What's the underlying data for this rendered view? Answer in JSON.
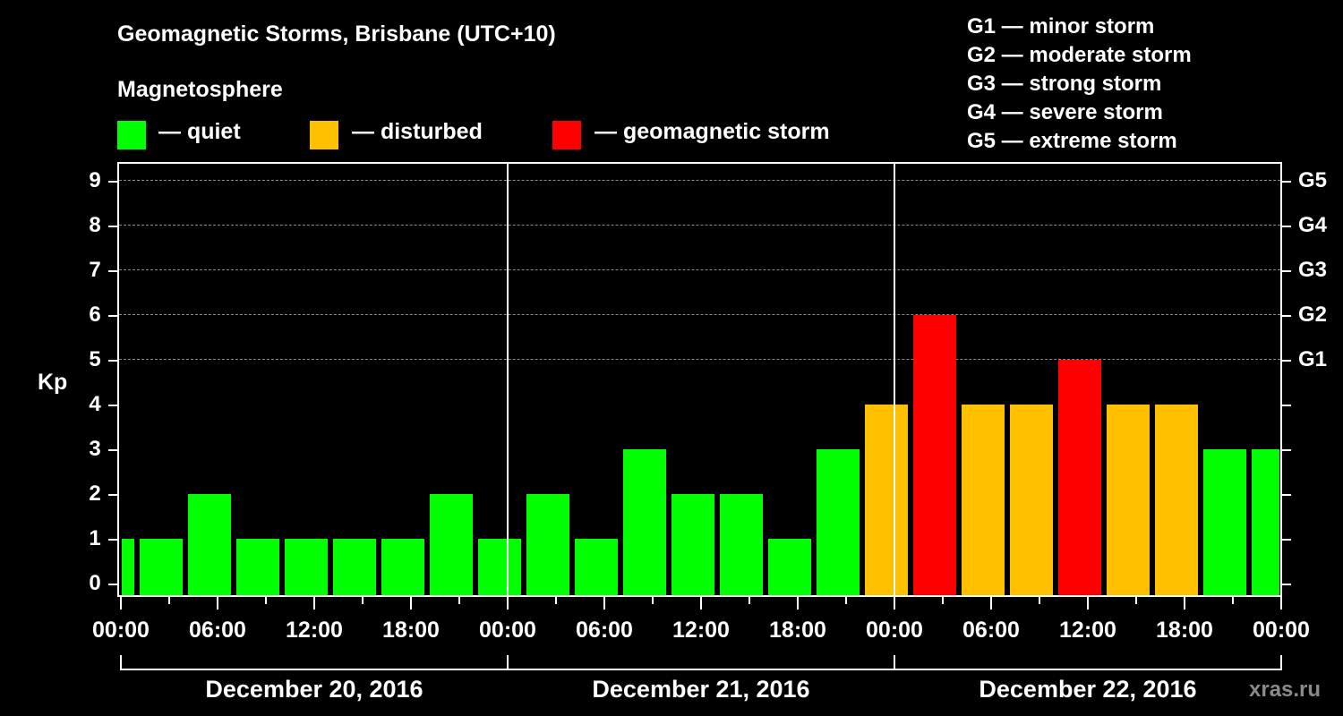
{
  "title": "Geomagnetic Storms, Brisbane (UTC+10)",
  "subtitle": "Magnetosphere",
  "legend": [
    {
      "label": "— quiet",
      "color": "#00ff00"
    },
    {
      "label": "— disturbed",
      "color": "#ffc000"
    },
    {
      "label": "— geomagnetic storm",
      "color": "#ff0000"
    }
  ],
  "g_scale": [
    {
      "label": "G1 — minor storm"
    },
    {
      "label": "G2 — moderate storm"
    },
    {
      "label": "G3 — strong storm"
    },
    {
      "label": "G4 — severe storm"
    },
    {
      "label": "G5 — extreme storm"
    }
  ],
  "axes": {
    "ylabel": "Kp",
    "yticks": [
      "0",
      "1",
      "2",
      "3",
      "4",
      "5",
      "6",
      "7",
      "8",
      "9"
    ],
    "right_ticks": [
      "G1",
      "G2",
      "G3",
      "G4",
      "G5"
    ],
    "xticks": [
      "00:00",
      "06:00",
      "12:00",
      "18:00",
      "00:00",
      "06:00",
      "12:00",
      "18:00",
      "00:00",
      "06:00",
      "12:00",
      "18:00",
      "00:00"
    ],
    "dates": [
      "December 20, 2016",
      "December 21, 2016",
      "December 22, 2016"
    ]
  },
  "credit": "xras.ru",
  "chart_data": {
    "type": "bar",
    "title": "Geomagnetic Storms, Brisbane (UTC+10)",
    "xlabel": "",
    "ylabel": "Kp",
    "ylim": [
      0,
      9
    ],
    "grid": "horizontal dashed at Kp 5-9",
    "interval_hours": 3,
    "categories": [
      "Dec 20 ~00:00 (partial)",
      "Dec 20 01:00",
      "Dec 20 04:00",
      "Dec 20 07:00",
      "Dec 20 10:00",
      "Dec 20 13:00",
      "Dec 20 16:00",
      "Dec 20 19:00",
      "Dec 20 22:00",
      "Dec 21 01:00",
      "Dec 21 04:00",
      "Dec 21 07:00",
      "Dec 21 10:00",
      "Dec 21 13:00",
      "Dec 21 16:00",
      "Dec 21 19:00",
      "Dec 21 22:00",
      "Dec 22 01:00",
      "Dec 22 04:00",
      "Dec 22 07:00",
      "Dec 22 10:00",
      "Dec 22 13:00",
      "Dec 22 16:00",
      "Dec 22 19:00",
      "Dec 22 22:00 (partial)"
    ],
    "values": [
      1,
      1,
      2,
      1,
      1,
      1,
      1,
      2,
      1,
      2,
      1,
      3,
      2,
      2,
      1,
      3,
      4,
      6,
      4,
      4,
      5,
      4,
      4,
      3,
      3
    ],
    "colors": {
      "quiet": "#00ff00",
      "disturbed": "#ffc000",
      "storm": "#ff0000"
    },
    "legend": [
      "quiet (Kp<4)",
      "disturbed (Kp=4)",
      "geomagnetic storm (Kp>=5)"
    ],
    "right_axis": {
      "G1": 5,
      "G2": 6,
      "G3": 7,
      "G4": 8,
      "G5": 9
    },
    "dates": [
      "December 20, 2016",
      "December 21, 2016",
      "December 22, 2016"
    ]
  }
}
